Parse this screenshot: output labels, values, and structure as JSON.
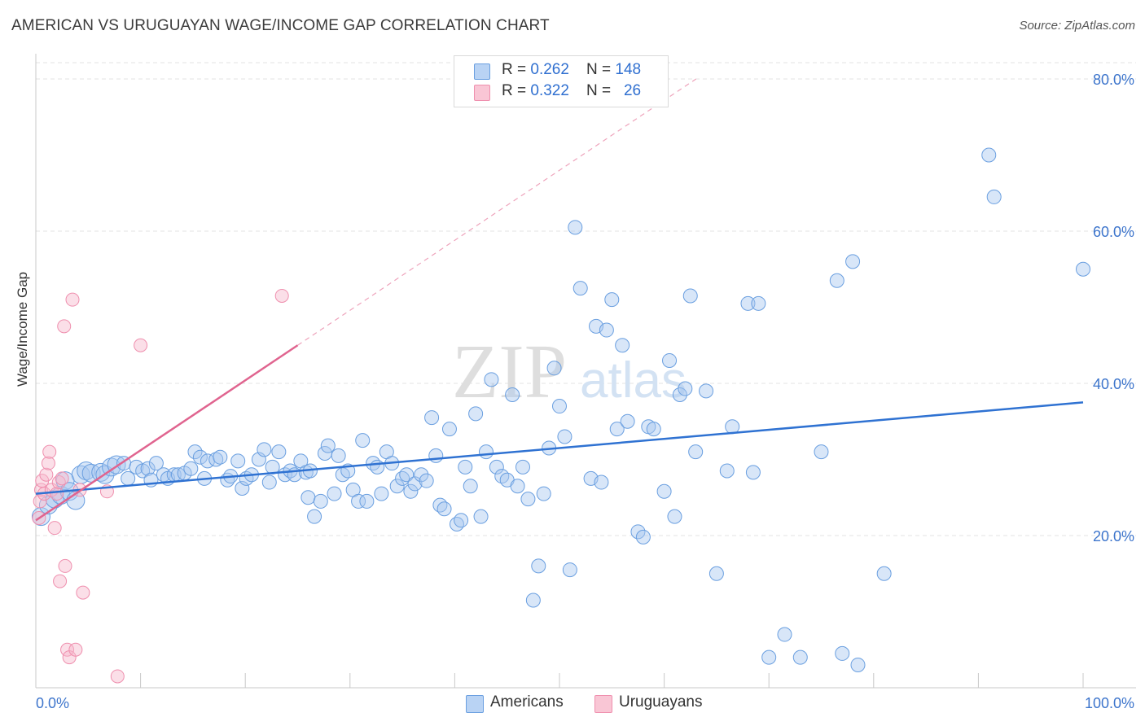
{
  "title": "AMERICAN VS URUGUAYAN WAGE/INCOME GAP CORRELATION CHART",
  "source": "Source: ZipAtlas.com",
  "watermark": {
    "zip": "ZIP",
    "atlas": "atlas"
  },
  "legend": {
    "rows": [
      {
        "r_label": "R = ",
        "r_value": "0.262",
        "n_label": "N = ",
        "n_value": "148"
      },
      {
        "r_label": "R = ",
        "r_value": "0.322",
        "n_label": "N = ",
        "n_value": "26"
      }
    ]
  },
  "bottom_legend": {
    "americans": "Americans",
    "uruguayans": "Uruguayans"
  },
  "colors": {
    "americans_fill": "#a9c8f0",
    "americans_stroke": "#6a9fe0",
    "americans_line": "#2f72d2",
    "uruguayans_fill": "#f7b7cb",
    "uruguayans_stroke": "#ef8fae",
    "uruguayans_line": "#e0648f",
    "axis_label": "#3d75cc",
    "grid": "#e3e3e3"
  },
  "chart_data": {
    "type": "scatter",
    "title": "AMERICAN VS URUGUAYAN WAGE/INCOME GAP CORRELATION CHART",
    "xlabel": "",
    "ylabel": "Wage/Income Gap",
    "xlim": [
      0,
      100
    ],
    "ylim": [
      0,
      80
    ],
    "x_tick_labels": [
      "0.0%",
      "100.0%"
    ],
    "y_ticks": [
      20,
      40,
      60,
      80
    ],
    "y_tick_labels": [
      "20.0%",
      "40.0%",
      "60.0%",
      "80.0%"
    ],
    "grid": true,
    "legend_position": "top-center",
    "series": [
      {
        "name": "Americans",
        "r": 0.262,
        "n": 148,
        "trend": {
          "x": [
            0,
            100
          ],
          "y": [
            25.5,
            37.5
          ]
        },
        "points": [
          [
            0.5,
            22.5
          ],
          [
            1.2,
            24.0
          ],
          [
            1.8,
            24.8
          ],
          [
            2.4,
            25.3
          ],
          [
            2.8,
            27.2
          ],
          [
            3.2,
            25.8
          ],
          [
            3.8,
            24.6
          ],
          [
            4.3,
            28.0
          ],
          [
            4.8,
            28.5
          ],
          [
            5.3,
            28.2
          ],
          [
            6.2,
            28.3
          ],
          [
            6.6,
            28.0
          ],
          [
            7.2,
            29.0
          ],
          [
            7.7,
            29.3
          ],
          [
            8.4,
            29.5
          ],
          [
            8.8,
            27.5
          ],
          [
            9.6,
            29.0
          ],
          [
            10.2,
            28.5
          ],
          [
            10.7,
            28.8
          ],
          [
            11.0,
            27.3
          ],
          [
            11.5,
            29.5
          ],
          [
            12.2,
            28.0
          ],
          [
            12.6,
            27.5
          ],
          [
            13.2,
            28.0
          ],
          [
            13.6,
            28.0
          ],
          [
            14.2,
            28.2
          ],
          [
            14.8,
            28.8
          ],
          [
            15.2,
            31.0
          ],
          [
            15.7,
            30.3
          ],
          [
            16.1,
            27.5
          ],
          [
            16.4,
            29.8
          ],
          [
            17.2,
            30.0
          ],
          [
            17.6,
            30.3
          ],
          [
            18.3,
            27.3
          ],
          [
            18.6,
            27.8
          ],
          [
            19.3,
            29.8
          ],
          [
            19.7,
            26.2
          ],
          [
            20.1,
            27.5
          ],
          [
            20.6,
            28.0
          ],
          [
            21.3,
            30.0
          ],
          [
            21.8,
            31.3
          ],
          [
            22.3,
            27.0
          ],
          [
            22.6,
            29.0
          ],
          [
            23.2,
            31.0
          ],
          [
            23.8,
            28.0
          ],
          [
            24.3,
            28.5
          ],
          [
            24.7,
            28.0
          ],
          [
            25.3,
            29.8
          ],
          [
            25.8,
            28.3
          ],
          [
            26.2,
            28.5
          ],
          [
            26.0,
            25.0
          ],
          [
            26.6,
            22.5
          ],
          [
            27.2,
            24.5
          ],
          [
            27.6,
            30.8
          ],
          [
            27.9,
            31.8
          ],
          [
            28.5,
            25.5
          ],
          [
            28.9,
            30.5
          ],
          [
            29.3,
            28.0
          ],
          [
            29.8,
            28.5
          ],
          [
            30.3,
            26.0
          ],
          [
            30.8,
            24.5
          ],
          [
            31.2,
            32.5
          ],
          [
            31.6,
            24.5
          ],
          [
            32.2,
            29.5
          ],
          [
            32.6,
            29.0
          ],
          [
            33.0,
            25.5
          ],
          [
            33.5,
            31.0
          ],
          [
            34.0,
            29.5
          ],
          [
            34.5,
            26.5
          ],
          [
            35.0,
            27.5
          ],
          [
            35.4,
            28.0
          ],
          [
            35.8,
            25.8
          ],
          [
            36.2,
            26.8
          ],
          [
            36.8,
            28.0
          ],
          [
            37.3,
            27.2
          ],
          [
            37.8,
            35.5
          ],
          [
            38.2,
            30.5
          ],
          [
            38.6,
            24.0
          ],
          [
            39.0,
            23.5
          ],
          [
            39.5,
            34.0
          ],
          [
            40.2,
            21.5
          ],
          [
            40.6,
            22.0
          ],
          [
            41.0,
            29.0
          ],
          [
            41.5,
            26.5
          ],
          [
            42.0,
            36.0
          ],
          [
            42.5,
            22.5
          ],
          [
            43.0,
            31.0
          ],
          [
            43.5,
            40.5
          ],
          [
            44.0,
            29.0
          ],
          [
            44.5,
            27.8
          ],
          [
            45.0,
            27.3
          ],
          [
            45.5,
            38.5
          ],
          [
            46.0,
            26.5
          ],
          [
            46.5,
            29.0
          ],
          [
            47.0,
            24.8
          ],
          [
            47.5,
            11.5
          ],
          [
            48.0,
            16.0
          ],
          [
            48.5,
            25.5
          ],
          [
            49.0,
            31.5
          ],
          [
            49.5,
            42.0
          ],
          [
            50.0,
            37.0
          ],
          [
            50.5,
            33.0
          ],
          [
            51.0,
            15.5
          ],
          [
            51.5,
            60.5
          ],
          [
            52.0,
            52.5
          ],
          [
            53.0,
            27.5
          ],
          [
            53.5,
            47.5
          ],
          [
            54.0,
            27.0
          ],
          [
            54.5,
            47.0
          ],
          [
            55.0,
            51.0
          ],
          [
            55.5,
            34.0
          ],
          [
            56.0,
            45.0
          ],
          [
            56.5,
            35.0
          ],
          [
            57.5,
            20.5
          ],
          [
            58.0,
            19.8
          ],
          [
            58.5,
            34.3
          ],
          [
            59.0,
            34.0
          ],
          [
            60.0,
            25.8
          ],
          [
            60.5,
            43.0
          ],
          [
            61.0,
            22.5
          ],
          [
            61.5,
            38.5
          ],
          [
            62.0,
            39.3
          ],
          [
            62.5,
            51.5
          ],
          [
            63.0,
            31.0
          ],
          [
            64.0,
            39.0
          ],
          [
            65.0,
            15.0
          ],
          [
            66.0,
            28.5
          ],
          [
            66.5,
            34.3
          ],
          [
            68.0,
            50.5
          ],
          [
            68.5,
            28.3
          ],
          [
            69.0,
            50.5
          ],
          [
            70.0,
            4.0
          ],
          [
            71.5,
            7.0
          ],
          [
            73.0,
            4.0
          ],
          [
            75.0,
            31.0
          ],
          [
            76.5,
            53.5
          ],
          [
            77.0,
            4.5
          ],
          [
            78.0,
            56.0
          ],
          [
            78.5,
            3.0
          ],
          [
            81.0,
            15.0
          ],
          [
            91.0,
            70.0
          ],
          [
            91.5,
            64.5
          ],
          [
            100.0,
            55.0
          ]
        ]
      },
      {
        "name": "Uruguayans",
        "r": 0.322,
        "n": 26,
        "trend": {
          "x": [
            0,
            25
          ],
          "y": [
            22.0,
            45.0
          ]
        },
        "points": [
          [
            0.3,
            22.3
          ],
          [
            0.4,
            24.5
          ],
          [
            0.5,
            26.0
          ],
          [
            0.6,
            27.2
          ],
          [
            0.8,
            25.5
          ],
          [
            1.0,
            28.0
          ],
          [
            1.2,
            29.5
          ],
          [
            1.3,
            31.0
          ],
          [
            1.5,
            26.0
          ],
          [
            1.8,
            21.0
          ],
          [
            2.0,
            25.5
          ],
          [
            2.2,
            27.0
          ],
          [
            2.3,
            14.0
          ],
          [
            2.5,
            27.5
          ],
          [
            2.7,
            47.5
          ],
          [
            2.8,
            16.0
          ],
          [
            3.0,
            5.0
          ],
          [
            3.2,
            4.0
          ],
          [
            3.5,
            51.0
          ],
          [
            3.8,
            5.0
          ],
          [
            4.2,
            26.0
          ],
          [
            4.5,
            12.5
          ],
          [
            6.8,
            25.8
          ],
          [
            7.8,
            1.5
          ],
          [
            10.0,
            45.0
          ],
          [
            23.5,
            51.5
          ]
        ]
      }
    ]
  }
}
